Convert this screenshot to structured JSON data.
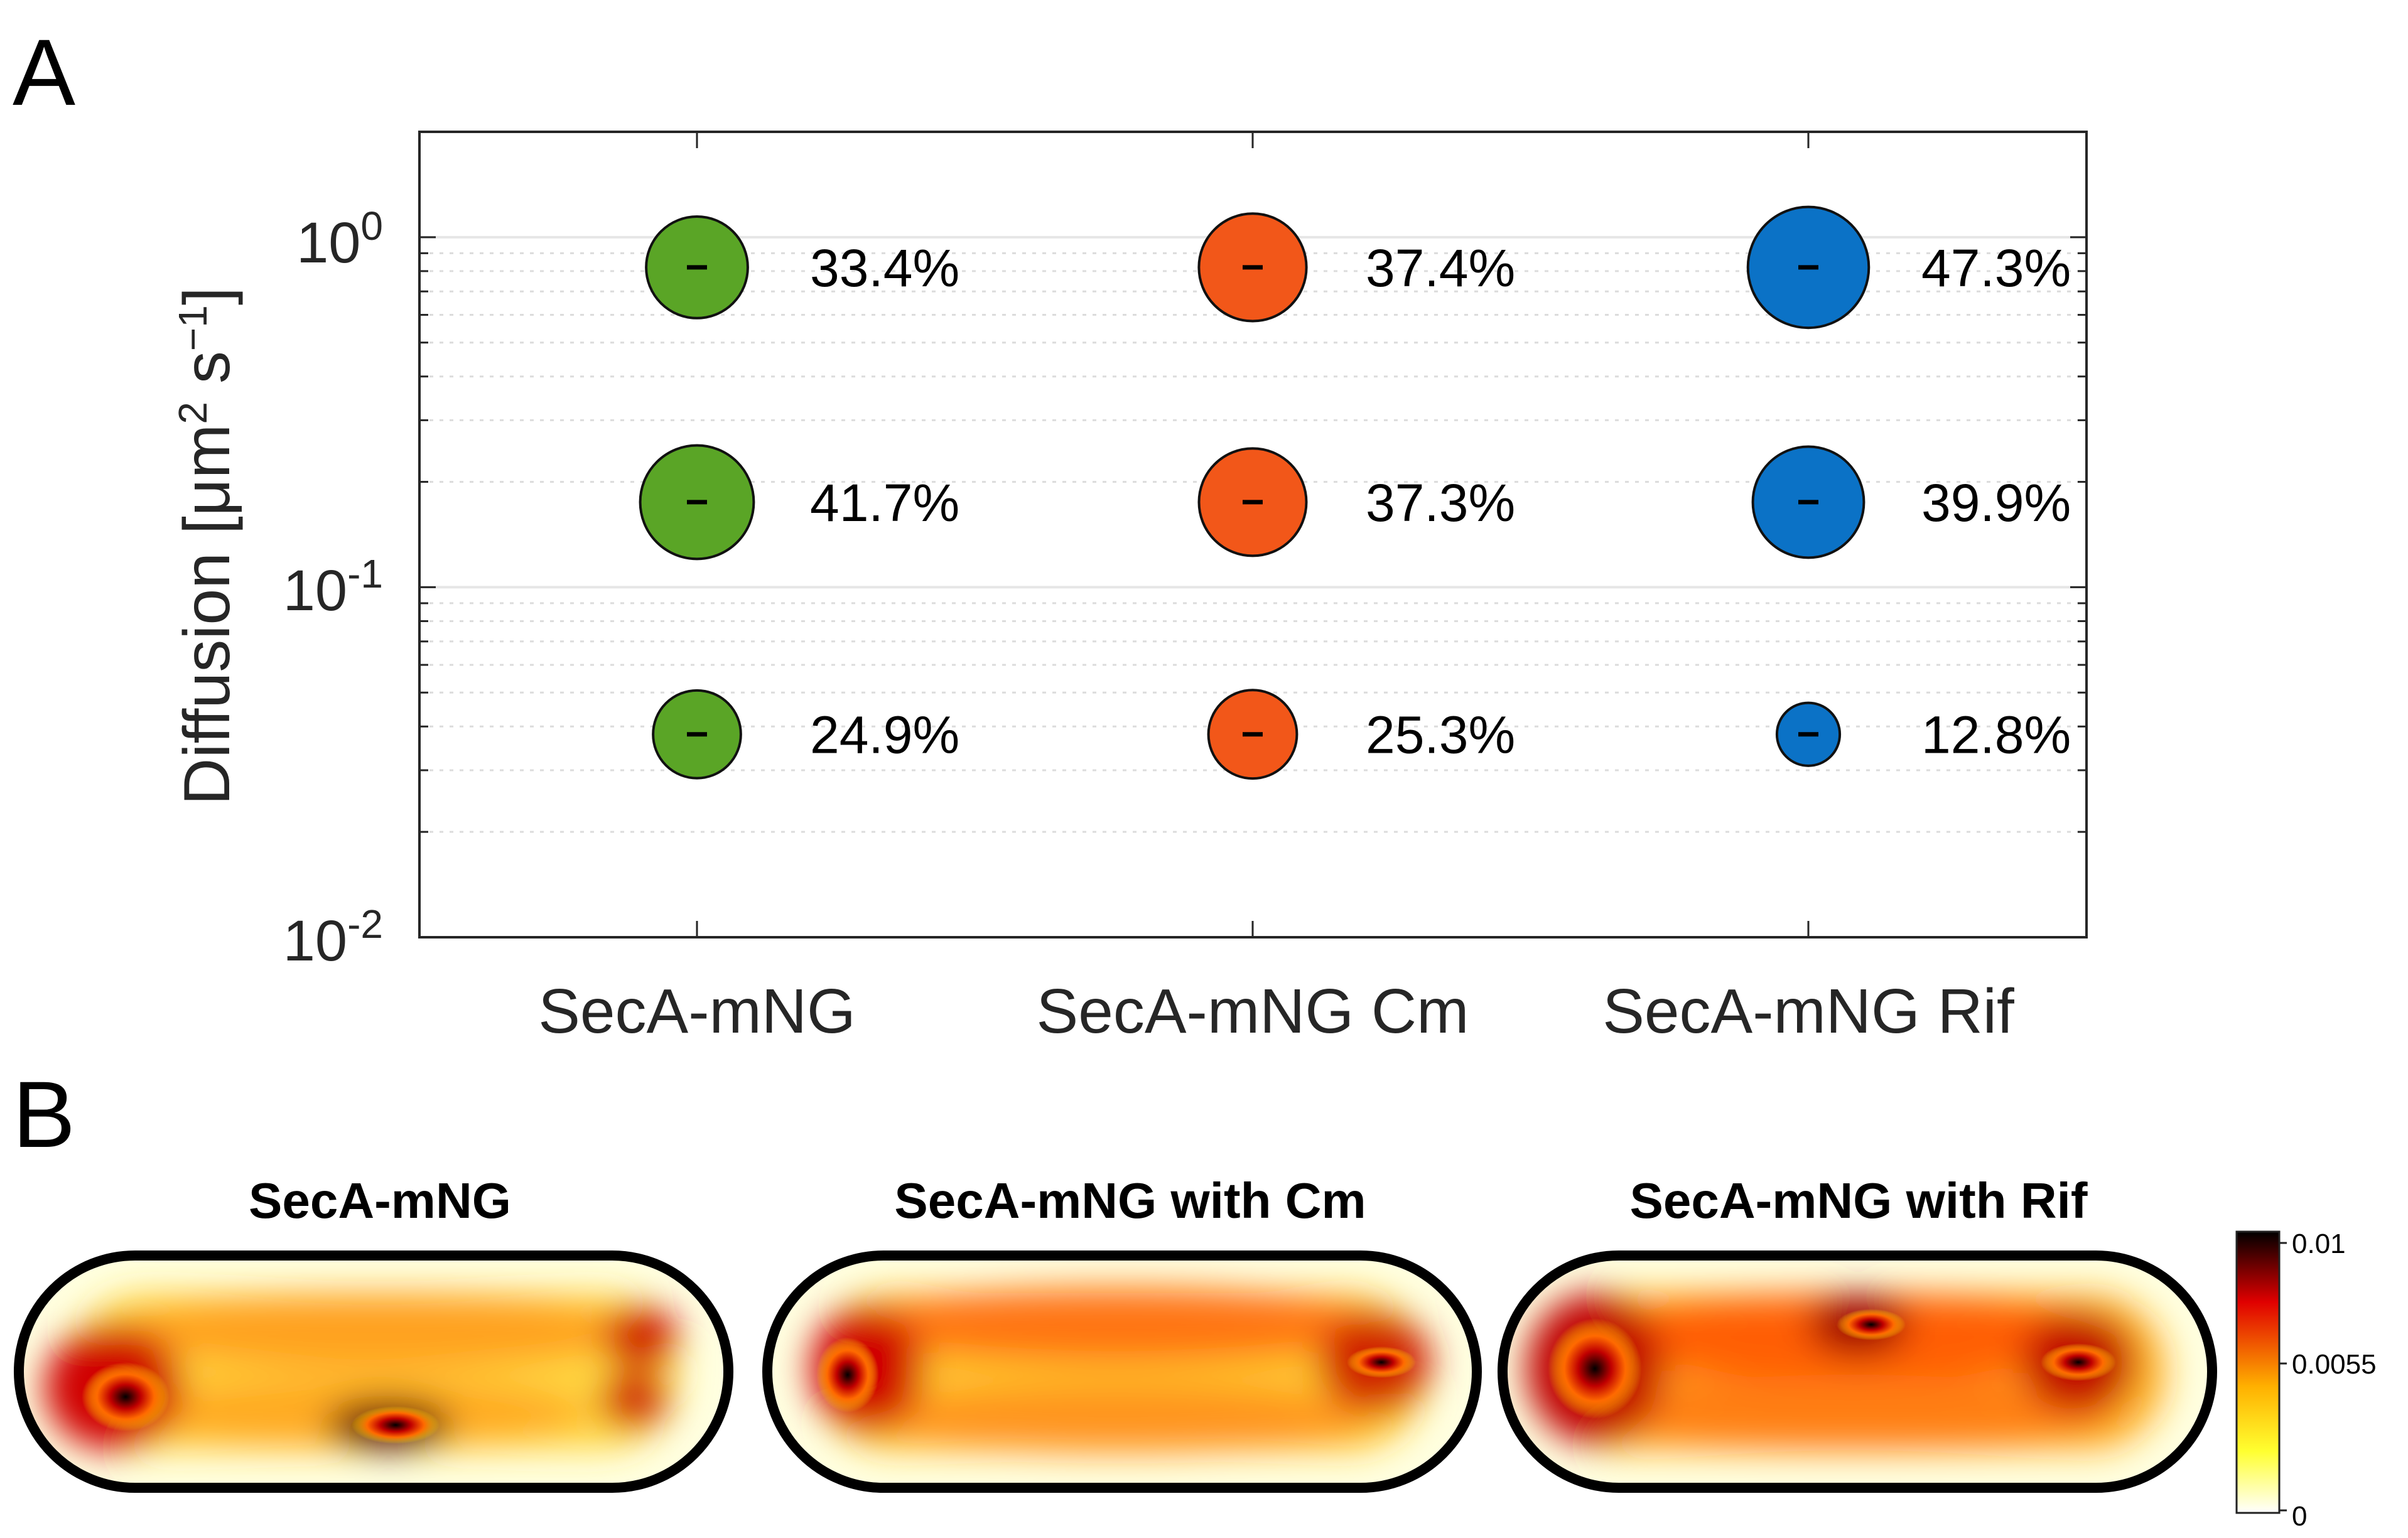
{
  "panels": {
    "a": "A",
    "b": "B"
  },
  "chart_data": {
    "type": "scatter",
    "ylabel_main": "Diffusion [μm",
    "ylabel_sup": "2",
    "ylabel_mid": " s",
    "ylabel_sup2": "−1",
    "ylabel_end": "]",
    "yscale": "log",
    "ylim": [
      0.01,
      2.0
    ],
    "yticks": [
      {
        "value": 1,
        "base": "10",
        "exp": "0"
      },
      {
        "value": 0.1,
        "base": "10",
        "exp": "-1"
      },
      {
        "value": 0.01,
        "base": "10",
        "exp": "-2"
      }
    ],
    "categories": [
      "SecA-mNG",
      "SecA-mNG Cm",
      "SecA-mNG Rif"
    ],
    "series": [
      {
        "name": "SecA-mNG",
        "color": "#5aa526",
        "points": [
          {
            "D": 0.82,
            "fraction": 33.4,
            "label": "33.4%"
          },
          {
            "D": 0.175,
            "fraction": 41.7,
            "label": "41.7%"
          },
          {
            "D": 0.038,
            "fraction": 24.9,
            "label": "24.9%"
          }
        ]
      },
      {
        "name": "SecA-mNG Cm",
        "color": "#f25719",
        "points": [
          {
            "D": 0.82,
            "fraction": 37.4,
            "label": "37.4%"
          },
          {
            "D": 0.175,
            "fraction": 37.3,
            "label": "37.3%"
          },
          {
            "D": 0.038,
            "fraction": 25.3,
            "label": "25.3%"
          }
        ]
      },
      {
        "name": "SecA-mNG Rif",
        "color": "#0b72c6",
        "points": [
          {
            "D": 0.82,
            "fraction": 47.3,
            "label": "47.3%"
          },
          {
            "D": 0.175,
            "fraction": 39.9,
            "label": "39.9%"
          },
          {
            "D": 0.038,
            "fraction": 12.8,
            "label": "12.8%"
          }
        ]
      }
    ]
  },
  "heatmaps": [
    {
      "title": "SecA-mNG"
    },
    {
      "title": "SecA-mNG with Cm"
    },
    {
      "title": "SecA-mNG with Rif"
    }
  ],
  "colorbar": {
    "max": "0.01",
    "mid": "0.0055",
    "min": "0",
    "colors": [
      "#000000",
      "#e00000",
      "#ffb000",
      "#ffff30",
      "#ffffff"
    ]
  }
}
